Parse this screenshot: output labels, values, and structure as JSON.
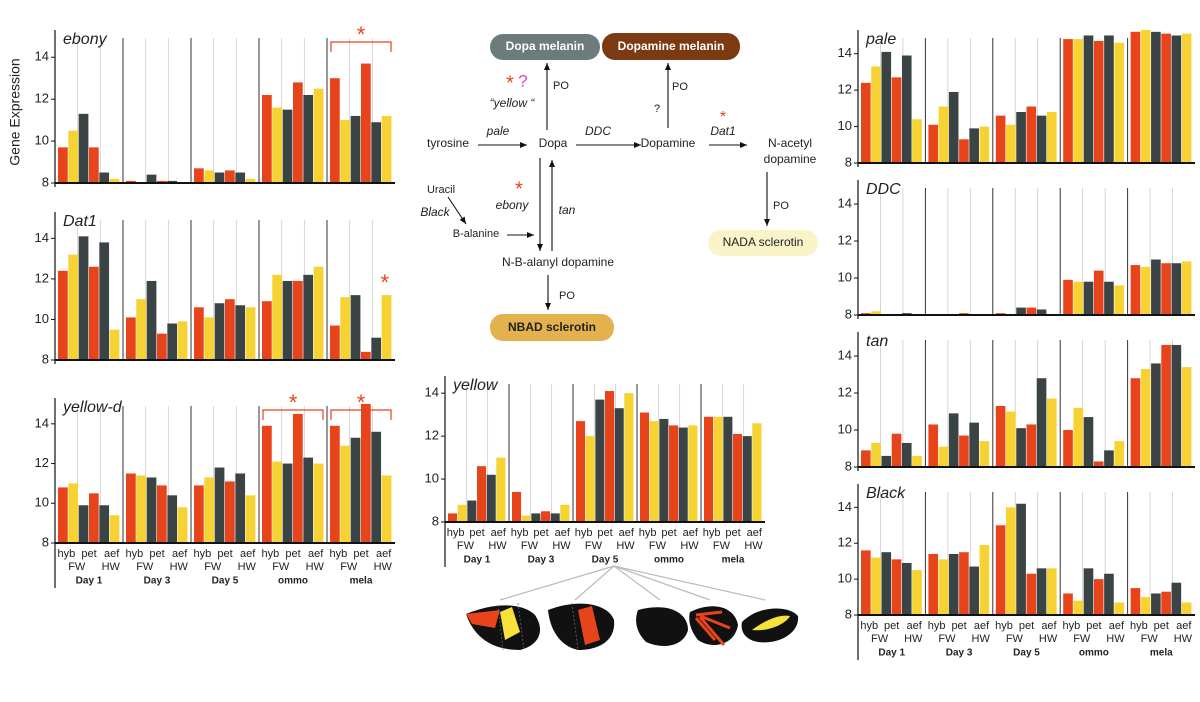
{
  "ylabel": "Gene Expression",
  "x_axis": {
    "races": [
      "hyb",
      "pet",
      "aef"
    ],
    "wings": [
      "FW",
      "HW"
    ],
    "groups": [
      "Day 1",
      "Day 3",
      "Day 5",
      "ommo",
      "mela"
    ]
  },
  "chart_data": [
    {
      "type": "bar",
      "title": "ebony",
      "ylim": [
        8,
        15.3
      ],
      "yticks": [
        8,
        10,
        12,
        14
      ],
      "annotations": [
        {
          "label": "*",
          "group": 4,
          "bracket": true
        }
      ],
      "series": [
        {
          "color": "#e8441c",
          "values": [
            9.7,
            8.1,
            8.7,
            12.2,
            13.0
          ]
        },
        {
          "color": "#f6d232",
          "values": [
            10.5,
            8.0,
            8.6,
            11.6,
            11.0
          ]
        },
        {
          "color": "#3b4444",
          "values": [
            11.3,
            8.4,
            8.5,
            11.5,
            11.2
          ]
        },
        {
          "color": "#e8441c",
          "values": [
            9.7,
            8.1,
            8.6,
            12.8,
            13.7
          ]
        },
        {
          "color": "#3b4444",
          "values": [
            8.5,
            8.1,
            8.5,
            12.2,
            10.9
          ]
        },
        {
          "color": "#f6d232",
          "values": [
            8.2,
            8.0,
            8.2,
            12.5,
            11.2
          ]
        }
      ]
    },
    {
      "type": "bar",
      "title": "Dat1",
      "ylim": [
        8,
        15.3
      ],
      "yticks": [
        8,
        10,
        12,
        14
      ],
      "annotations": [
        {
          "label": "*",
          "group": 4,
          "bracket": false
        }
      ],
      "series": [
        {
          "color": "#e8441c",
          "values": [
            12.4,
            10.1,
            10.6,
            10.9,
            9.7
          ]
        },
        {
          "color": "#f6d232",
          "values": [
            13.2,
            11.0,
            10.1,
            12.2,
            11.1
          ]
        },
        {
          "color": "#3b4444",
          "values": [
            14.1,
            11.9,
            10.8,
            11.9,
            11.2
          ]
        },
        {
          "color": "#e8441c",
          "values": [
            12.6,
            9.3,
            11.0,
            11.9,
            8.4
          ]
        },
        {
          "color": "#3b4444",
          "values": [
            13.8,
            9.8,
            10.7,
            12.2,
            9.1
          ]
        },
        {
          "color": "#f6d232",
          "values": [
            9.5,
            9.9,
            10.6,
            12.6,
            11.2
          ]
        }
      ]
    },
    {
      "type": "bar",
      "title": "yellow-d",
      "ylim": [
        8,
        15.3
      ],
      "yticks": [
        8,
        10,
        12,
        14
      ],
      "annotations": [
        {
          "label": "*",
          "group": 3,
          "bracket": true
        },
        {
          "label": "*",
          "group": 4,
          "bracket": true
        }
      ],
      "series": [
        {
          "color": "#e8441c",
          "values": [
            10.8,
            11.5,
            10.9,
            13.9,
            13.9
          ]
        },
        {
          "color": "#f6d232",
          "values": [
            11.0,
            11.4,
            11.3,
            12.1,
            12.9
          ]
        },
        {
          "color": "#3b4444",
          "values": [
            9.9,
            11.3,
            11.8,
            12.0,
            13.3
          ]
        },
        {
          "color": "#e8441c",
          "values": [
            10.5,
            10.9,
            11.1,
            14.5,
            15.0
          ]
        },
        {
          "color": "#3b4444",
          "values": [
            9.9,
            10.4,
            11.5,
            12.3,
            13.6
          ]
        },
        {
          "color": "#f6d232",
          "values": [
            9.4,
            9.8,
            10.4,
            12.0,
            11.4
          ]
        }
      ]
    },
    {
      "type": "bar",
      "title": "pale",
      "ylim": [
        8,
        15.3
      ],
      "yticks": [
        8,
        10,
        12,
        14
      ],
      "series": [
        {
          "color": "#e8441c",
          "values": [
            12.4,
            10.1,
            10.6,
            14.8,
            15.2
          ]
        },
        {
          "color": "#f6d232",
          "values": [
            13.3,
            11.1,
            10.1,
            14.8,
            15.3
          ]
        },
        {
          "color": "#3b4444",
          "values": [
            14.1,
            11.9,
            10.8,
            15.0,
            15.2
          ]
        },
        {
          "color": "#e8441c",
          "values": [
            12.7,
            9.3,
            11.1,
            14.7,
            15.1
          ]
        },
        {
          "color": "#3b4444",
          "values": [
            13.9,
            9.9,
            10.6,
            15.0,
            15.0
          ]
        },
        {
          "color": "#f6d232",
          "values": [
            10.4,
            10.0,
            10.8,
            14.6,
            15.1
          ]
        }
      ]
    },
    {
      "type": "bar",
      "title": "DDC",
      "ylim": [
        8,
        15.3
      ],
      "yticks": [
        8,
        10,
        12,
        14
      ],
      "series": [
        {
          "color": "#e8441c",
          "values": [
            8.1,
            8.0,
            8.1,
            9.9,
            10.7
          ]
        },
        {
          "color": "#f6d232",
          "values": [
            8.2,
            8.0,
            8.0,
            9.8,
            10.6
          ]
        },
        {
          "color": "#3b4444",
          "values": [
            8.0,
            8.0,
            8.4,
            9.8,
            11.0
          ]
        },
        {
          "color": "#e8441c",
          "values": [
            8.0,
            8.1,
            8.4,
            10.4,
            10.8
          ]
        },
        {
          "color": "#3b4444",
          "values": [
            8.1,
            8.0,
            8.3,
            9.8,
            10.8
          ]
        },
        {
          "color": "#f6d232",
          "values": [
            8.0,
            8.0,
            8.0,
            9.6,
            10.9
          ]
        }
      ]
    },
    {
      "type": "bar",
      "title": "tan",
      "ylim": [
        8,
        15.3
      ],
      "yticks": [
        8,
        10,
        12,
        14
      ],
      "series": [
        {
          "color": "#e8441c",
          "values": [
            8.9,
            10.3,
            11.3,
            10.0,
            12.8
          ]
        },
        {
          "color": "#f6d232",
          "values": [
            9.3,
            9.1,
            11.0,
            11.2,
            13.3
          ]
        },
        {
          "color": "#3b4444",
          "values": [
            8.6,
            10.9,
            10.1,
            10.7,
            13.6
          ]
        },
        {
          "color": "#e8441c",
          "values": [
            9.8,
            9.7,
            10.3,
            8.3,
            14.6
          ]
        },
        {
          "color": "#3b4444",
          "values": [
            9.3,
            10.4,
            12.8,
            8.9,
            14.6
          ]
        },
        {
          "color": "#f6d232",
          "values": [
            8.6,
            9.4,
            11.7,
            9.4,
            13.4
          ]
        }
      ]
    },
    {
      "type": "bar",
      "title": "Black",
      "ylim": [
        8,
        15.3
      ],
      "yticks": [
        8,
        10,
        12,
        14
      ],
      "series": [
        {
          "color": "#e8441c",
          "values": [
            11.6,
            11.4,
            13.0,
            9.2,
            9.5
          ]
        },
        {
          "color": "#f6d232",
          "values": [
            11.2,
            11.1,
            14.0,
            8.8,
            9.0
          ]
        },
        {
          "color": "#3b4444",
          "values": [
            11.5,
            11.4,
            14.2,
            10.6,
            9.2
          ]
        },
        {
          "color": "#e8441c",
          "values": [
            11.1,
            11.5,
            10.3,
            10.0,
            9.3
          ]
        },
        {
          "color": "#3b4444",
          "values": [
            10.9,
            10.7,
            10.6,
            10.3,
            9.8
          ]
        },
        {
          "color": "#f6d232",
          "values": [
            10.5,
            11.9,
            10.6,
            8.7,
            8.7
          ]
        }
      ]
    },
    {
      "type": "bar",
      "title": "yellow",
      "ylim": [
        8,
        14.8
      ],
      "yticks": [
        8,
        10,
        12,
        14
      ],
      "series": [
        {
          "color": "#e8441c",
          "values": [
            8.4,
            9.4,
            12.7,
            13.1,
            12.9
          ]
        },
        {
          "color": "#f6d232",
          "values": [
            8.8,
            8.3,
            12.0,
            12.7,
            12.9
          ]
        },
        {
          "color": "#3b4444",
          "values": [
            9.0,
            8.4,
            13.7,
            12.8,
            12.9
          ]
        },
        {
          "color": "#e8441c",
          "values": [
            10.6,
            8.5,
            14.1,
            12.5,
            12.1
          ]
        },
        {
          "color": "#3b4444",
          "values": [
            10.2,
            8.4,
            13.3,
            12.4,
            12.0
          ]
        },
        {
          "color": "#f6d232",
          "values": [
            11.0,
            8.8,
            14.0,
            12.5,
            12.6
          ]
        }
      ]
    }
  ],
  "diagram": {
    "pigments": [
      "Dopa melanin",
      "Dopamine melanin",
      "NBAD sclerotin",
      "NADA sclerotin"
    ],
    "compounds": [
      "tyrosine",
      "Dopa",
      "Dopamine",
      "N-acetyl",
      "dopamine",
      "N-B-alanyl dopamine",
      "Uracil",
      "B-alanine"
    ],
    "enzymes": [
      "pale",
      "DDC",
      "Dat1",
      "ebony",
      "tan",
      "Black",
      "“yellow “"
    ],
    "reactions": [
      "PO",
      "PO",
      "PO",
      "PO",
      "?"
    ],
    "marks": [
      "*",
      "*",
      "*",
      "?"
    ]
  }
}
